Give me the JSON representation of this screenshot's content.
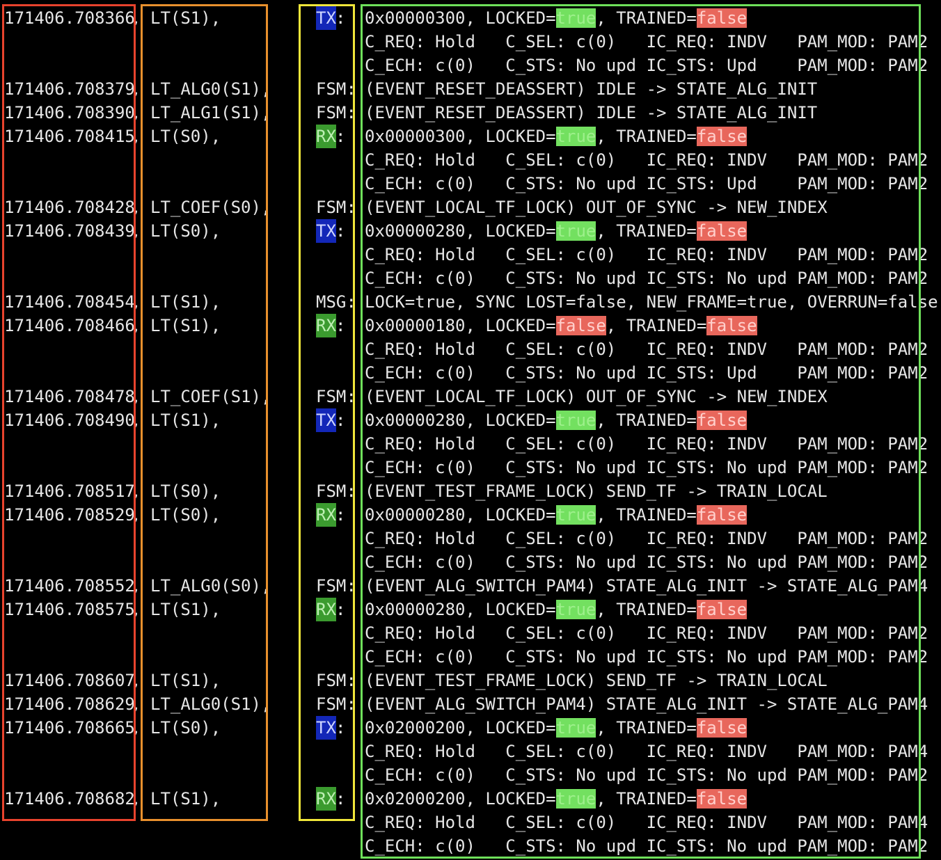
{
  "log": [
    {
      "ts": "171406.708366",
      "mod": "LT(S1),",
      "tag": "TX",
      "kind": "frame",
      "hex": "0x00000300",
      "locked": "true",
      "trained": "false"
    },
    {
      "cont": "C_REQ: Hold   C_SEL: c(0)   IC_REQ: INDV   PAM_MOD: PAM2"
    },
    {
      "cont": "C_ECH: c(0)   C_STS: No upd IC_STS: Upd    PAM_MOD: PAM2"
    },
    {
      "ts": "171406.708379",
      "mod": "LT_ALG0(S1),",
      "tag": "FSM",
      "kind": "text",
      "text": "(EVENT_RESET_DEASSERT) IDLE -> STATE_ALG_INIT"
    },
    {
      "ts": "171406.708390",
      "mod": "LT_ALG1(S1),",
      "tag": "FSM",
      "kind": "text",
      "text": "(EVENT_RESET_DEASSERT) IDLE -> STATE_ALG_INIT"
    },
    {
      "ts": "171406.708415",
      "mod": "LT(S0),",
      "tag": "RX",
      "kind": "frame",
      "hex": "0x00000300",
      "locked": "true",
      "trained": "false"
    },
    {
      "cont": "C_REQ: Hold   C_SEL: c(0)   IC_REQ: INDV   PAM_MOD: PAM2"
    },
    {
      "cont": "C_ECH: c(0)   C_STS: No upd IC_STS: Upd    PAM_MOD: PAM2"
    },
    {
      "ts": "171406.708428",
      "mod": "LT_COEF(S0),",
      "tag": "FSM",
      "kind": "text",
      "text": "(EVENT_LOCAL_TF_LOCK) OUT_OF_SYNC -> NEW_INDEX"
    },
    {
      "ts": "171406.708439",
      "mod": "LT(S0),",
      "tag": "TX",
      "kind": "frame",
      "hex": "0x00000280",
      "locked": "true",
      "trained": "false"
    },
    {
      "cont": "C_REQ: Hold   C_SEL: c(0)   IC_REQ: INDV   PAM_MOD: PAM2"
    },
    {
      "cont": "C_ECH: c(0)   C_STS: No upd IC_STS: No upd PAM_MOD: PAM2"
    },
    {
      "ts": "171406.708454",
      "mod": "LT(S1),",
      "tag": "MSG",
      "kind": "text",
      "text": "LOCK=true, SYNC LOST=false, NEW_FRAME=true, OVERRUN=false"
    },
    {
      "ts": "171406.708466",
      "mod": "LT(S1),",
      "tag": "RX",
      "kind": "frame",
      "hex": "0x00000180",
      "locked": "false",
      "trained": "false"
    },
    {
      "cont": "C_REQ: Hold   C_SEL: c(0)   IC_REQ: INDV   PAM_MOD: PAM2"
    },
    {
      "cont": "C_ECH: c(0)   C_STS: No upd IC_STS: Upd    PAM_MOD: PAM2"
    },
    {
      "ts": "171406.708478",
      "mod": "LT_COEF(S1),",
      "tag": "FSM",
      "kind": "text",
      "text": "(EVENT_LOCAL_TF_LOCK) OUT_OF_SYNC -> NEW_INDEX"
    },
    {
      "ts": "171406.708490",
      "mod": "LT(S1),",
      "tag": "TX",
      "kind": "frame",
      "hex": "0x00000280",
      "locked": "true",
      "trained": "false"
    },
    {
      "cont": "C_REQ: Hold   C_SEL: c(0)   IC_REQ: INDV   PAM_MOD: PAM2"
    },
    {
      "cont": "C_ECH: c(0)   C_STS: No upd IC_STS: No upd PAM_MOD: PAM2"
    },
    {
      "ts": "171406.708517",
      "mod": "LT(S0),",
      "tag": "FSM",
      "kind": "text",
      "text": "(EVENT_TEST_FRAME_LOCK) SEND_TF -> TRAIN_LOCAL"
    },
    {
      "ts": "171406.708529",
      "mod": "LT(S0),",
      "tag": "RX",
      "kind": "frame",
      "hex": "0x00000280",
      "locked": "true",
      "trained": "false"
    },
    {
      "cont": "C_REQ: Hold   C_SEL: c(0)   IC_REQ: INDV   PAM_MOD: PAM2"
    },
    {
      "cont": "C_ECH: c(0)   C_STS: No upd IC_STS: No upd PAM_MOD: PAM2"
    },
    {
      "ts": "171406.708552",
      "mod": "LT_ALG0(S0),",
      "tag": "FSM",
      "kind": "text",
      "text": "(EVENT_ALG_SWITCH_PAM4) STATE_ALG_INIT -> STATE_ALG_PAM4"
    },
    {
      "ts": "171406.708575",
      "mod": "LT(S1),",
      "tag": "RX",
      "kind": "frame",
      "hex": "0x00000280",
      "locked": "true",
      "trained": "false"
    },
    {
      "cont": "C_REQ: Hold   C_SEL: c(0)   IC_REQ: INDV   PAM_MOD: PAM2"
    },
    {
      "cont": "C_ECH: c(0)   C_STS: No upd IC_STS: No upd PAM_MOD: PAM2"
    },
    {
      "ts": "171406.708607",
      "mod": "LT(S1),",
      "tag": "FSM",
      "kind": "text",
      "text": "(EVENT_TEST_FRAME_LOCK) SEND_TF -> TRAIN_LOCAL"
    },
    {
      "ts": "171406.708629",
      "mod": "LT_ALG0(S1),",
      "tag": "FSM",
      "kind": "text",
      "text": "(EVENT_ALG_SWITCH_PAM4) STATE_ALG_INIT -> STATE_ALG_PAM4"
    },
    {
      "ts": "171406.708665",
      "mod": "LT(S0),",
      "tag": "TX",
      "kind": "frame",
      "hex": "0x02000200",
      "locked": "true",
      "trained": "false"
    },
    {
      "cont": "C_REQ: Hold   C_SEL: c(0)   IC_REQ: INDV   PAM_MOD: PAM4"
    },
    {
      "cont": "C_ECH: c(0)   C_STS: No upd IC_STS: No upd PAM_MOD: PAM2"
    },
    {
      "ts": "171406.708682",
      "mod": "LT(S1),",
      "tag": "RX",
      "kind": "frame",
      "hex": "0x02000200",
      "locked": "true",
      "trained": "false"
    },
    {
      "cont": "C_REQ: Hold   C_SEL: c(0)   IC_REQ: INDV   PAM_MOD: PAM4"
    },
    {
      "cont": "C_ECH: c(0)   C_STS: No upd IC_STS: No upd PAM_MOD: PAM2"
    }
  ],
  "frames": {
    "timestamp_column": "#e8432d",
    "module_column": "#e8902d",
    "tag_column": "#f0e63a",
    "message_column": "#6ee05a"
  }
}
